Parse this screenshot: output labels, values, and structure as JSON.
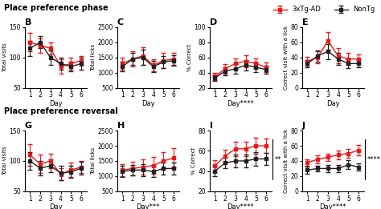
{
  "chart_data": [
    {
      "type": "line",
      "title": "B",
      "subtitle": "Place preference phase",
      "legend": "upper right",
      "x": [
        1,
        2,
        3,
        4,
        5,
        6
      ],
      "xlim": [
        0.5,
        6.5
      ],
      "xticks": [
        1,
        2,
        3,
        4,
        5,
        6
      ],
      "xlabel": "Day",
      "ylabel": "Total visits",
      "ylim": [
        50,
        150
      ],
      "yticks": [
        50,
        100,
        150
      ],
      "marker": "square",
      "series": [
        {
          "name": "3xTg-AD",
          "color": "#e8191a",
          "values": [
            125,
            120,
            115,
            85,
            90,
            95
          ],
          "error": [
            15,
            12,
            10,
            12,
            10,
            8
          ]
        },
        {
          "name": "NonTg",
          "color": "#231f20",
          "values": [
            115,
            125,
            100,
            90,
            85,
            90
          ],
          "error": [
            12,
            10,
            12,
            10,
            8,
            10
          ]
        }
      ]
    },
    {
      "type": "line",
      "title": "C",
      "x": [
        1,
        2,
        3,
        4,
        5,
        6
      ],
      "xlim": [
        0.5,
        6.5
      ],
      "xticks": [
        1,
        2,
        3,
        4,
        5,
        6
      ],
      "xlabel": "Day",
      "ylabel": "Total licks",
      "ylim": [
        500,
        2500
      ],
      "yticks": [
        500,
        1000,
        1500,
        2000,
        2500
      ],
      "marker": "square",
      "series": [
        {
          "name": "3xTg-AD",
          "color": "#e8191a",
          "values": [
            1300,
            1450,
            1550,
            1250,
            1400,
            1450
          ],
          "error": [
            200,
            250,
            300,
            200,
            250,
            200
          ]
        },
        {
          "name": "NonTg",
          "color": "#231f20",
          "values": [
            1200,
            1450,
            1500,
            1200,
            1350,
            1400
          ],
          "error": [
            150,
            200,
            250,
            180,
            200,
            180
          ]
        }
      ]
    },
    {
      "type": "line",
      "title": "D",
      "x": [
        1,
        2,
        3,
        4,
        5,
        6
      ],
      "xlim": [
        0.5,
        6.5
      ],
      "xticks": [
        1,
        2,
        3,
        4,
        5,
        6
      ],
      "xlabel": "Day****",
      "ylabel": "% Correct",
      "ylim": [
        20,
        100
      ],
      "yticks": [
        20,
        40,
        60,
        80,
        100
      ],
      "marker": "square",
      "series": [
        {
          "name": "3xTg-AD",
          "color": "#e8191a",
          "values": [
            35,
            45,
            52,
            55,
            52,
            47
          ],
          "error": [
            5,
            6,
            7,
            8,
            7,
            6
          ]
        },
        {
          "name": "NonTg",
          "color": "#231f20",
          "values": [
            33,
            42,
            45,
            50,
            47,
            44
          ],
          "error": [
            4,
            5,
            6,
            7,
            6,
            5
          ]
        }
      ]
    },
    {
      "type": "line",
      "title": "E",
      "x": [
        1,
        2,
        3,
        4,
        5,
        6
      ],
      "xlim": [
        0.5,
        6.5
      ],
      "xticks": [
        1,
        2,
        3,
        4,
        5,
        6
      ],
      "xlabel": "Day",
      "ylabel": "Correct visit with a lick",
      "ylim": [
        0,
        80
      ],
      "yticks": [
        0,
        20,
        40,
        60,
        80
      ],
      "marker": "square",
      "series": [
        {
          "name": "3xTg-AD",
          "color": "#e8191a",
          "values": [
            35,
            40,
            62,
            42,
            38,
            38
          ],
          "error": [
            6,
            8,
            12,
            10,
            8,
            6
          ]
        },
        {
          "name": "NonTg",
          "color": "#231f20",
          "values": [
            32,
            42,
            48,
            38,
            32,
            32
          ],
          "error": [
            5,
            7,
            10,
            8,
            6,
            5
          ]
        }
      ]
    },
    {
      "type": "line",
      "title": "G",
      "subtitle": "Place preference reversal",
      "x": [
        1,
        2,
        3,
        4,
        5,
        6
      ],
      "xlim": [
        0.5,
        6.5
      ],
      "xticks": [
        1,
        2,
        3,
        4,
        5,
        6
      ],
      "xlabel": "Day",
      "ylabel": "Total visits",
      "ylim": [
        50,
        150
      ],
      "yticks": [
        50,
        100,
        150
      ],
      "marker": "square",
      "series": [
        {
          "name": "3xTg-AD",
          "color": "#e8191a",
          "values": [
            110,
            95,
            100,
            78,
            85,
            90
          ],
          "error": [
            18,
            15,
            12,
            10,
            12,
            10
          ]
        },
        {
          "name": "NonTg",
          "color": "#231f20",
          "values": [
            100,
            88,
            92,
            80,
            82,
            88
          ],
          "error": [
            14,
            12,
            10,
            12,
            10,
            10
          ]
        }
      ]
    },
    {
      "type": "line",
      "title": "H",
      "x": [
        1,
        2,
        3,
        4,
        5,
        6
      ],
      "xlim": [
        0.5,
        6.5
      ],
      "xticks": [
        1,
        2,
        3,
        4,
        5,
        6
      ],
      "xlabel": "Day***",
      "ylabel": "Total licks",
      "ylim": [
        500,
        2500
      ],
      "yticks": [
        500,
        1000,
        1500,
        2000,
        2500
      ],
      "marker": "square",
      "series": [
        {
          "name": "3xTg-AD",
          "color": "#e8191a",
          "values": [
            1200,
            1250,
            1300,
            1350,
            1500,
            1600
          ],
          "error": [
            200,
            220,
            250,
            280,
            300,
            320
          ]
        },
        {
          "name": "NonTg",
          "color": "#231f20",
          "values": [
            1150,
            1200,
            1200,
            1150,
            1250,
            1250
          ],
          "error": [
            180,
            180,
            200,
            180,
            200,
            200
          ]
        }
      ]
    },
    {
      "type": "line",
      "title": "I",
      "annotations": [
        "**"
      ],
      "x": [
        1,
        2,
        3,
        4,
        5,
        6
      ],
      "xlim": [
        0.5,
        6.5
      ],
      "xticks": [
        1,
        2,
        3,
        4,
        5,
        6
      ],
      "xlabel": "Day****",
      "ylabel": "% Correct",
      "ylim": [
        20,
        80
      ],
      "yticks": [
        20,
        40,
        60,
        80
      ],
      "marker": "square",
      "series": [
        {
          "name": "3xTg-AD",
          "color": "#e8191a",
          "values": [
            45,
            55,
            62,
            62,
            65,
            65
          ],
          "error": [
            6,
            6,
            7,
            7,
            8,
            7
          ]
        },
        {
          "name": "NonTg",
          "color": "#231f20",
          "values": [
            40,
            48,
            50,
            50,
            52,
            52
          ],
          "error": [
            5,
            5,
            6,
            6,
            7,
            6
          ]
        }
      ]
    },
    {
      "type": "line",
      "title": "J",
      "annotations": [
        "****"
      ],
      "x": [
        1,
        2,
        3,
        4,
        5,
        6
      ],
      "xlim": [
        0.5,
        6.5
      ],
      "xticks": [
        1,
        2,
        3,
        4,
        5,
        6
      ],
      "xlabel": "Day****",
      "ylabel": "Correct visit with a lick",
      "ylim": [
        0,
        80
      ],
      "yticks": [
        0,
        20,
        40,
        60,
        80
      ],
      "marker": "square",
      "series": [
        {
          "name": "3xTg-AD",
          "color": "#e8191a",
          "values": [
            38,
            42,
            45,
            48,
            50,
            54
          ],
          "error": [
            4,
            5,
            5,
            6,
            6,
            7
          ]
        },
        {
          "name": "NonTg",
          "color": "#231f20",
          "values": [
            28,
            30,
            30,
            30,
            35,
            32
          ],
          "error": [
            5,
            4,
            5,
            5,
            6,
            5
          ]
        }
      ]
    }
  ]
}
